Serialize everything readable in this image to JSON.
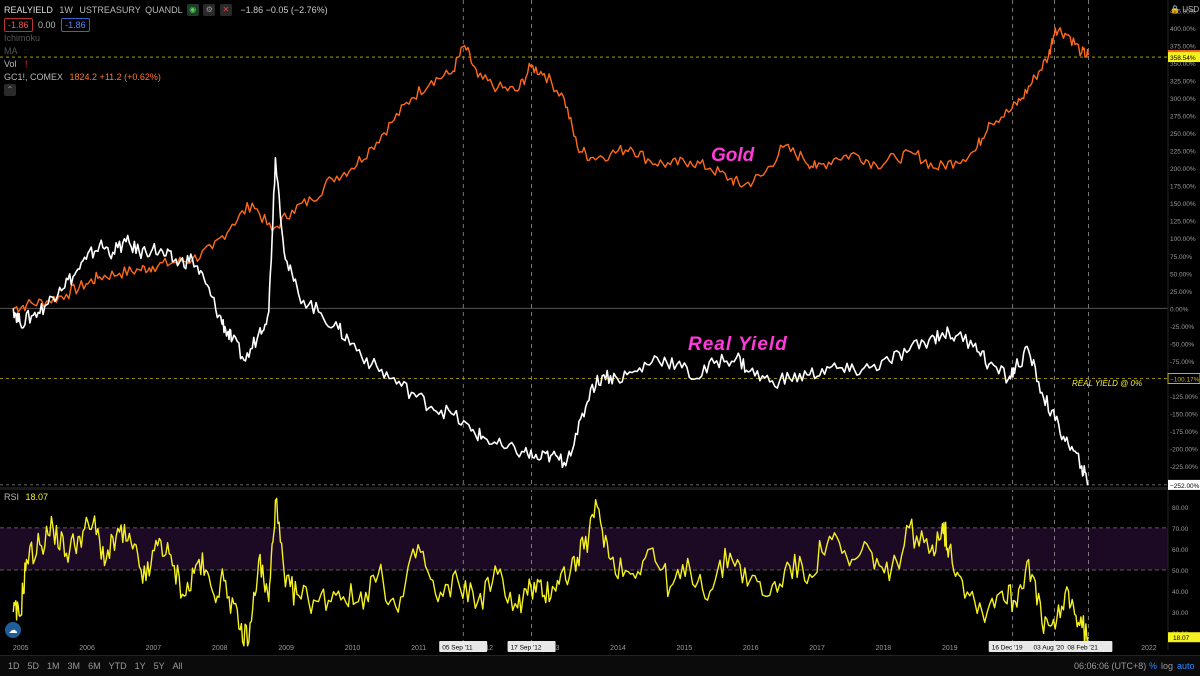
{
  "legend": {
    "symbol": "REALYIELD",
    "interval": "1W",
    "source": "USTREASURY",
    "vendor": "QUANDL",
    "bid": "-1.86",
    "spread": "0.00",
    "ask": "-1.86",
    "change_text": "−1.86 −0.05 (−2.76%)",
    "ichimoku_label": "Ichimoku",
    "ma_label": "MA",
    "vol_label": "Vol",
    "gold_symbol": "GC1!, COMEX",
    "gold_values": "1824.2 +11.2 (+0.62%)"
  },
  "annotations": {
    "gold": "Gold",
    "real_yield": "Real Yield",
    "real_yield_zero": "REAL YIELD @ 0%"
  },
  "rsi": {
    "label": "RSI",
    "value": "18.07"
  },
  "currency": "USD",
  "bottom": {
    "timeframes": [
      "1D",
      "5D",
      "1M",
      "3M",
      "6M",
      "YTD",
      "1Y",
      "5Y",
      "All"
    ],
    "clock": "06:06:06 (UTC+8)",
    "percent": "%",
    "log": "log",
    "auto": "auto"
  },
  "colors": {
    "gold": "#ff6a1a",
    "real_yield": "#ffffff",
    "rsi": "#f5f020",
    "annotation": "#ff3ad8",
    "zero_label": "#f5f020"
  },
  "chart_data": [
    {
      "type": "line",
      "title": "",
      "x_ticks": [
        "2005",
        "2006",
        "2007",
        "2008",
        "2009",
        "2010",
        "2011",
        "2012",
        "2013",
        "2014",
        "2015",
        "2016",
        "2017",
        "2018",
        "2019",
        "2020",
        "2021",
        "2022"
      ],
      "x_range": [
        2004.7,
        2022.3
      ],
      "ylim": [
        -255,
        440
      ],
      "y_ticks": [
        "425.00%",
        "400.00%",
        "375.00%",
        "350.00%",
        "325.00%",
        "300.00%",
        "275.00%",
        "250.00%",
        "225.00%",
        "200.00%",
        "175.00%",
        "150.00%",
        "125.00%",
        "100.00%",
        "75.00%",
        "50.00%",
        "25.00%",
        "0.00%",
        "-25.00%",
        "-50.00%",
        "-75.00%",
        "-100.00%",
        "-125.00%",
        "-150.00%",
        "-175.00%",
        "-200.00%",
        "-225.00%"
      ],
      "y_tick_values": [
        425,
        400,
        375,
        350,
        325,
        300,
        275,
        250,
        225,
        200,
        175,
        150,
        125,
        100,
        75,
        50,
        25,
        0,
        -25,
        -50,
        -75,
        -100,
        -125,
        -150,
        -175,
        -200,
        -225
      ],
      "price_labels": [
        {
          "text": "361.39%",
          "value": 361.39,
          "bg": "#ff6a1a"
        },
        {
          "text": "358.54%",
          "value": 358.54,
          "bg": "#f5f020"
        },
        {
          "text": "−100.17%",
          "value": -100.17,
          "bg": "#000000"
        },
        {
          "text": "−252.00%",
          "value": -252,
          "bg": "#ffffff"
        }
      ],
      "series": [
        {
          "name": "GC1!, COMEX",
          "x": [
            2004.9,
            2005.1,
            2005.4,
            2005.7,
            2006.0,
            2006.2,
            2006.5,
            2006.8,
            2007.0,
            2007.3,
            2007.6,
            2007.9,
            2008.2,
            2008.5,
            2008.8,
            2009.1,
            2009.4,
            2009.7,
            2010.0,
            2010.3,
            2010.6,
            2010.9,
            2011.2,
            2011.5,
            2011.7,
            2011.9,
            2012.2,
            2012.5,
            2012.7,
            2012.9,
            2013.2,
            2013.4,
            2013.6,
            2013.9,
            2014.2,
            2014.5,
            2014.8,
            2015.1,
            2015.4,
            2015.7,
            2015.9,
            2016.2,
            2016.5,
            2016.8,
            2017.0,
            2017.3,
            2017.6,
            2017.9,
            2018.2,
            2018.5,
            2018.8,
            2019.1,
            2019.4,
            2019.6,
            2019.9,
            2020.1,
            2020.3,
            2020.5,
            2020.6,
            2020.8,
            2021.0,
            2021.1
          ],
          "values": [
            0,
            5,
            10,
            20,
            35,
            45,
            50,
            55,
            60,
            65,
            70,
            85,
            120,
            150,
            110,
            140,
            155,
            185,
            200,
            230,
            265,
            300,
            325,
            335,
            375,
            330,
            315,
            310,
            345,
            335,
            300,
            230,
            215,
            220,
            230,
            210,
            205,
            210,
            200,
            185,
            175,
            190,
            230,
            215,
            200,
            215,
            220,
            205,
            215,
            220,
            200,
            210,
            225,
            265,
            280,
            300,
            330,
            360,
            400,
            390,
            365,
            361.39
          ]
        },
        {
          "name": "REALYIELD",
          "x": [
            2004.9,
            2005.0,
            2005.2,
            2005.4,
            2005.6,
            2005.8,
            2006.0,
            2006.2,
            2006.4,
            2006.6,
            2006.8,
            2007.0,
            2007.2,
            2007.4,
            2007.6,
            2007.8,
            2008.0,
            2008.1,
            2008.2,
            2008.4,
            2008.6,
            2008.75,
            2008.85,
            2009.0,
            2009.2,
            2009.5,
            2009.8,
            2010.0,
            2010.3,
            2010.6,
            2010.9,
            2011.2,
            2011.5,
            2011.8,
            2012.0,
            2012.3,
            2012.6,
            2012.8,
            2013.0,
            2013.2,
            2013.4,
            2013.6,
            2013.8,
            2014.0,
            2014.3,
            2014.6,
            2014.9,
            2015.2,
            2015.5,
            2015.8,
            2016.0,
            2016.3,
            2016.6,
            2016.9,
            2017.2,
            2017.5,
            2017.8,
            2018.1,
            2018.4,
            2018.7,
            2018.9,
            2019.1,
            2019.4,
            2019.6,
            2019.9,
            2020.0,
            2020.2,
            2020.4,
            2020.6,
            2020.8,
            2021.0,
            2021.1
          ],
          "values": [
            0,
            -20,
            -10,
            5,
            30,
            45,
            70,
            90,
            80,
            95,
            80,
            85,
            75,
            65,
            70,
            35,
            -10,
            -30,
            -45,
            -75,
            -35,
            -5,
            215,
            70,
            20,
            -5,
            -30,
            -50,
            -80,
            -100,
            -120,
            -140,
            -150,
            -175,
            -185,
            -200,
            -205,
            -215,
            -210,
            -220,
            -180,
            -115,
            -95,
            -100,
            -90,
            -70,
            -80,
            -100,
            -75,
            -70,
            -90,
            -105,
            -100,
            -95,
            -85,
            -90,
            -85,
            -75,
            -60,
            -45,
            -35,
            -40,
            -50,
            -80,
            -100,
            -85,
            -60,
            -120,
            -160,
            -195,
            -225,
            -252
          ]
        }
      ]
    },
    {
      "type": "line",
      "title": "RSI",
      "ylim": [
        12,
        88
      ],
      "y_ticks": [
        "80.00",
        "70.00",
        "60.00",
        "50.00",
        "40.00",
        "30.00",
        "20.00"
      ],
      "y_tick_values": [
        80,
        70,
        60,
        50,
        40,
        30,
        20
      ],
      "band": [
        50,
        70
      ],
      "price_label": {
        "text": "18.07",
        "value": 18.07
      },
      "series": [
        {
          "name": "RSI",
          "x": [
            2004.9,
            2005.0,
            2005.1,
            2005.3,
            2005.5,
            2005.7,
            2005.9,
            2006.1,
            2006.3,
            2006.5,
            2006.7,
            2006.9,
            2007.1,
            2007.3,
            2007.5,
            2007.7,
            2007.9,
            2008.1,
            2008.3,
            2008.45,
            2008.6,
            2008.75,
            2008.85,
            2009.0,
            2009.2,
            2009.5,
            2009.8,
            2010.1,
            2010.4,
            2010.7,
            2011.0,
            2011.3,
            2011.6,
            2011.9,
            2012.2,
            2012.5,
            2012.7,
            2012.9,
            2013.1,
            2013.3,
            2013.5,
            2013.7,
            2013.9,
            2014.2,
            2014.5,
            2014.8,
            2015.1,
            2015.4,
            2015.7,
            2016.0,
            2016.3,
            2016.6,
            2016.9,
            2017.2,
            2017.5,
            2017.8,
            2018.1,
            2018.4,
            2018.7,
            2018.9,
            2019.0,
            2019.2,
            2019.5,
            2019.8,
            2020.0,
            2020.2,
            2020.4,
            2020.6,
            2020.8,
            2020.95,
            2021.1
          ],
          "values": [
            30,
            28,
            55,
            62,
            70,
            58,
            66,
            72,
            55,
            68,
            60,
            45,
            65,
            52,
            38,
            55,
            40,
            45,
            22,
            16,
            55,
            35,
            83,
            42,
            38,
            35,
            40,
            35,
            48,
            30,
            62,
            35,
            45,
            35,
            48,
            32,
            42,
            38,
            45,
            50,
            60,
            80,
            55,
            48,
            60,
            42,
            50,
            40,
            58,
            45,
            38,
            52,
            48,
            66,
            52,
            60,
            45,
            70,
            58,
            72,
            60,
            45,
            30,
            40,
            35,
            55,
            25,
            22,
            40,
            25,
            18.07
          ]
        }
      ]
    }
  ],
  "date_tags": [
    "05 Sep '11",
    "17 Sep '12",
    "16 Dec '19",
    "03 Aug '20",
    "08 Feb '21"
  ]
}
